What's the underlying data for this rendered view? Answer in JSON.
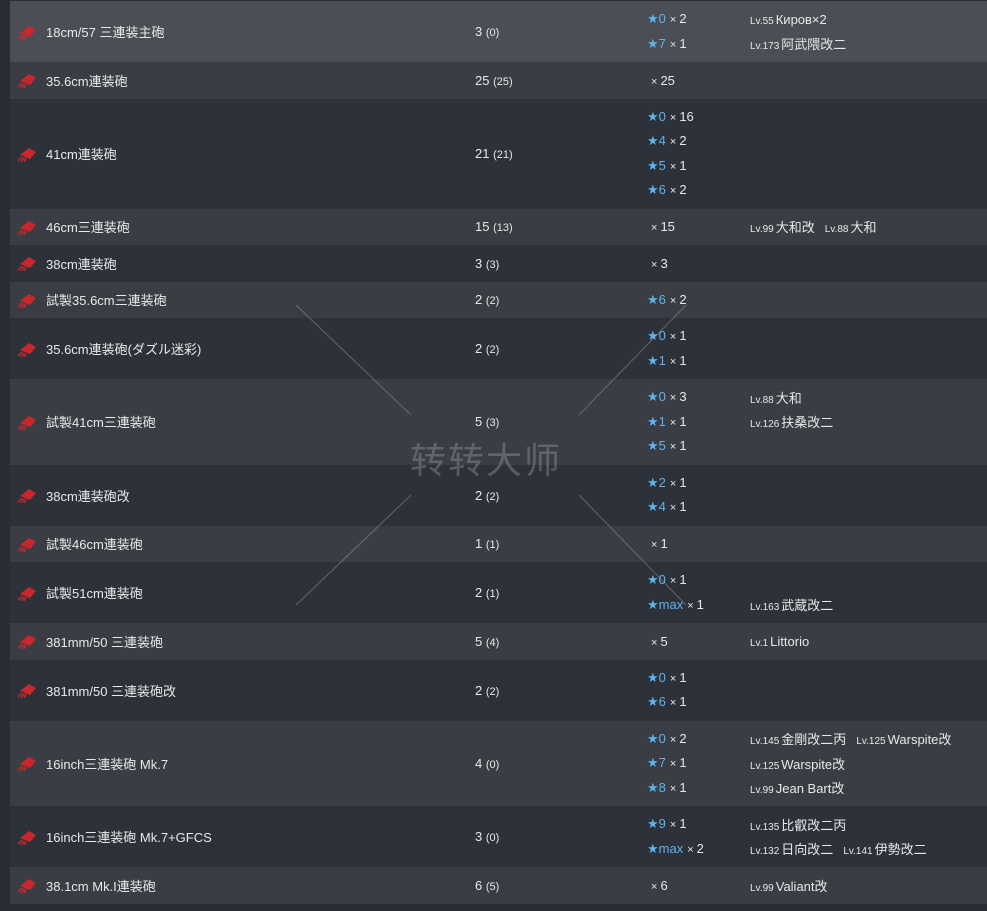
{
  "accent_star_color": "#5fb4ee",
  "icon": "main-gun-red-icon",
  "watermark": "转转大师",
  "rows": [
    {
      "name": "18cm/57 三連装主砲",
      "count": "3",
      "spare": "(0)",
      "highlight": true,
      "lines": [
        {
          "star": "★0",
          "qty": "2",
          "ships": [
            {
              "lv": "Lv.55",
              "name": "Киров×2"
            }
          ]
        },
        {
          "star": "★7",
          "qty": "1",
          "ships": [
            {
              "lv": "Lv.173",
              "name": "阿武隈改二"
            }
          ]
        }
      ]
    },
    {
      "name": "35.6cm連装砲",
      "count": "25",
      "spare": "(25)",
      "lines": [
        {
          "star": "",
          "qty": "25",
          "ships": []
        }
      ]
    },
    {
      "name": "41cm連装砲",
      "count": "21",
      "spare": "(21)",
      "lines": [
        {
          "star": "★0",
          "qty": "16",
          "ships": []
        },
        {
          "star": "★4",
          "qty": "2",
          "ships": []
        },
        {
          "star": "★5",
          "qty": "1",
          "ships": []
        },
        {
          "star": "★6",
          "qty": "2",
          "ships": []
        }
      ]
    },
    {
      "name": "46cm三連装砲",
      "count": "15",
      "spare": "(13)",
      "lines": [
        {
          "star": "",
          "qty": "15",
          "ships": [
            {
              "lv": "Lv.99",
              "name": "大和改"
            },
            {
              "lv": "Lv.88",
              "name": "大和"
            }
          ]
        }
      ]
    },
    {
      "name": "38cm連装砲",
      "count": "3",
      "spare": "(3)",
      "lines": [
        {
          "star": "",
          "qty": "3",
          "ships": []
        }
      ]
    },
    {
      "name": "試製35.6cm三連装砲",
      "count": "2",
      "spare": "(2)",
      "lines": [
        {
          "star": "★6",
          "qty": "2",
          "ships": []
        }
      ]
    },
    {
      "name": "35.6cm連装砲(ダズル迷彩)",
      "count": "2",
      "spare": "(2)",
      "lines": [
        {
          "star": "★0",
          "qty": "1",
          "ships": []
        },
        {
          "star": "★1",
          "qty": "1",
          "ships": []
        }
      ]
    },
    {
      "name": "試製41cm三連装砲",
      "count": "5",
      "spare": "(3)",
      "lines": [
        {
          "star": "★0",
          "qty": "3",
          "ships": [
            {
              "lv": "Lv.88",
              "name": "大和"
            }
          ]
        },
        {
          "star": "★1",
          "qty": "1",
          "ships": [
            {
              "lv": "Lv.126",
              "name": "扶桑改二"
            }
          ]
        },
        {
          "star": "★5",
          "qty": "1",
          "ships": []
        }
      ]
    },
    {
      "name": "38cm連装砲改",
      "count": "2",
      "spare": "(2)",
      "lines": [
        {
          "star": "★2",
          "qty": "1",
          "ships": []
        },
        {
          "star": "★4",
          "qty": "1",
          "ships": []
        }
      ]
    },
    {
      "name": "試製46cm連装砲",
      "count": "1",
      "spare": "(1)",
      "lines": [
        {
          "star": "",
          "qty": "1",
          "ships": []
        }
      ]
    },
    {
      "name": "試製51cm連装砲",
      "count": "2",
      "spare": "(1)",
      "lines": [
        {
          "star": "★0",
          "qty": "1",
          "ships": []
        },
        {
          "star": "★max",
          "qty": "1",
          "ships": [
            {
              "lv": "Lv.163",
              "name": "武蔵改二"
            }
          ]
        }
      ]
    },
    {
      "name": "381mm/50 三連装砲",
      "count": "5",
      "spare": "(4)",
      "lines": [
        {
          "star": "",
          "qty": "5",
          "ships": [
            {
              "lv": "Lv.1",
              "name": "Littorio"
            }
          ]
        }
      ]
    },
    {
      "name": "381mm/50 三連装砲改",
      "count": "2",
      "spare": "(2)",
      "lines": [
        {
          "star": "★0",
          "qty": "1",
          "ships": []
        },
        {
          "star": "★6",
          "qty": "1",
          "ships": []
        }
      ]
    },
    {
      "name": "16inch三連装砲 Mk.7",
      "count": "4",
      "spare": "(0)",
      "lines": [
        {
          "star": "★0",
          "qty": "2",
          "ships": [
            {
              "lv": "Lv.145",
              "name": "金剛改二丙"
            },
            {
              "lv": "Lv.125",
              "name": "Warspite改"
            }
          ]
        },
        {
          "star": "★7",
          "qty": "1",
          "ships": [
            {
              "lv": "Lv.125",
              "name": "Warspite改"
            }
          ]
        },
        {
          "star": "★8",
          "qty": "1",
          "ships": [
            {
              "lv": "Lv.99",
              "name": "Jean Bart改"
            }
          ]
        }
      ]
    },
    {
      "name": "16inch三連装砲 Mk.7+GFCS",
      "count": "3",
      "spare": "(0)",
      "lines": [
        {
          "star": "★9",
          "qty": "1",
          "ships": [
            {
              "lv": "Lv.135",
              "name": "比叡改二丙"
            }
          ]
        },
        {
          "star": "★max",
          "qty": "2",
          "ships": [
            {
              "lv": "Lv.132",
              "name": "日向改二"
            },
            {
              "lv": "Lv.141",
              "name": "伊勢改二"
            }
          ]
        }
      ]
    },
    {
      "name": "38.1cm Mk.I連装砲",
      "count": "6",
      "spare": "(5)",
      "lines": [
        {
          "star": "",
          "qty": "6",
          "ships": [
            {
              "lv": "Lv.99",
              "name": "Valiant改"
            }
          ]
        }
      ]
    }
  ]
}
